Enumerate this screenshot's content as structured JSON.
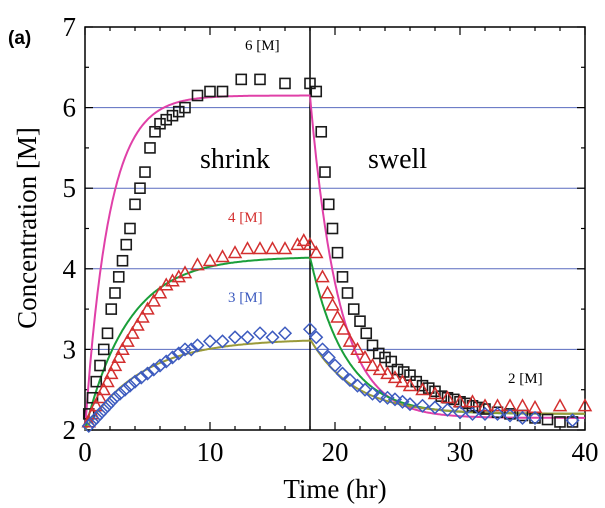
{
  "panel_label": "(a)",
  "chart_data": {
    "type": "scatter",
    "xlabel": "Time (hr)",
    "ylabel": "Concentration [M]",
    "xlim": [
      0,
      40
    ],
    "ylim": [
      2,
      7
    ],
    "x_ticks": [
      0,
      10,
      20,
      30,
      40
    ],
    "y_ticks": [
      2,
      3,
      4,
      5,
      6,
      7
    ],
    "grid": "horizontal lines at y = 3, 4, 5, 6",
    "divider_x": 18,
    "annotations": {
      "shrink": "shrink",
      "swell": "swell",
      "label_6M": "6 [M]",
      "label_4M": "4 [M]",
      "label_3M": "3 [M]",
      "label_2M": "2 [M]"
    },
    "series": [
      {
        "marker": "square",
        "color": "#1a1a1a",
        "fit_color": "#e040a8",
        "points": [
          [
            0.3,
            2.2
          ],
          [
            0.6,
            2.4
          ],
          [
            0.9,
            2.6
          ],
          [
            1.2,
            2.8
          ],
          [
            1.5,
            3.0
          ],
          [
            1.8,
            3.2
          ],
          [
            2.1,
            3.5
          ],
          [
            2.4,
            3.7
          ],
          [
            2.7,
            3.9
          ],
          [
            3.0,
            4.1
          ],
          [
            3.3,
            4.3
          ],
          [
            3.6,
            4.5
          ],
          [
            4.0,
            4.8
          ],
          [
            4.4,
            5.0
          ],
          [
            4.8,
            5.2
          ],
          [
            5.2,
            5.5
          ],
          [
            5.6,
            5.7
          ],
          [
            6.0,
            5.8
          ],
          [
            6.5,
            5.85
          ],
          [
            7.0,
            5.9
          ],
          [
            7.5,
            5.95
          ],
          [
            8.0,
            6.0
          ],
          [
            9.0,
            6.15
          ],
          [
            10.0,
            6.2
          ],
          [
            11.0,
            6.2
          ],
          [
            12.5,
            6.35
          ],
          [
            14.0,
            6.35
          ],
          [
            16.0,
            6.3
          ],
          [
            18.0,
            6.3
          ],
          [
            18.5,
            6.2
          ],
          [
            18.9,
            5.7
          ],
          [
            19.2,
            5.2
          ],
          [
            19.5,
            4.8
          ],
          [
            19.8,
            4.5
          ],
          [
            20.2,
            4.2
          ],
          [
            20.6,
            3.9
          ],
          [
            21.0,
            3.7
          ],
          [
            21.5,
            3.5
          ],
          [
            22.0,
            3.35
          ],
          [
            22.5,
            3.2
          ],
          [
            23.0,
            3.05
          ],
          [
            23.5,
            2.95
          ],
          [
            24.0,
            2.9
          ],
          [
            24.5,
            2.85
          ],
          [
            25.0,
            2.75
          ],
          [
            25.5,
            2.72
          ],
          [
            26.0,
            2.68
          ],
          [
            26.5,
            2.6
          ],
          [
            27.0,
            2.55
          ],
          [
            27.5,
            2.52
          ],
          [
            28.0,
            2.48
          ],
          [
            28.5,
            2.42
          ],
          [
            29.0,
            2.4
          ],
          [
            29.5,
            2.38
          ],
          [
            30.0,
            2.35
          ],
          [
            30.5,
            2.33
          ],
          [
            31.0,
            2.3
          ],
          [
            31.5,
            2.28
          ],
          [
            32.0,
            2.26
          ],
          [
            33.0,
            2.22
          ],
          [
            34.0,
            2.2
          ],
          [
            35.0,
            2.18
          ],
          [
            36.0,
            2.15
          ],
          [
            37.0,
            2.13
          ],
          [
            38.0,
            2.1
          ],
          [
            39.0,
            2.1
          ]
        ],
        "fit": {
          "start": 2.0,
          "plateau": 6.15,
          "rise_tau": 1.9,
          "end": 2.15,
          "decay_tau": 2.3
        }
      },
      {
        "marker": "triangle",
        "color": "#d32f2f",
        "fit_color": "#1a9f3a",
        "points": [
          [
            0.3,
            2.1
          ],
          [
            0.6,
            2.2
          ],
          [
            0.9,
            2.3
          ],
          [
            1.2,
            2.4
          ],
          [
            1.5,
            2.5
          ],
          [
            1.8,
            2.6
          ],
          [
            2.1,
            2.7
          ],
          [
            2.4,
            2.8
          ],
          [
            2.7,
            2.9
          ],
          [
            3.0,
            3.0
          ],
          [
            3.4,
            3.1
          ],
          [
            3.8,
            3.2
          ],
          [
            4.2,
            3.3
          ],
          [
            4.6,
            3.4
          ],
          [
            5.0,
            3.5
          ],
          [
            5.5,
            3.6
          ],
          [
            6.0,
            3.7
          ],
          [
            6.5,
            3.8
          ],
          [
            7.0,
            3.85
          ],
          [
            7.5,
            3.9
          ],
          [
            8.0,
            3.95
          ],
          [
            9.0,
            4.05
          ],
          [
            10.0,
            4.1
          ],
          [
            11.0,
            4.15
          ],
          [
            12.0,
            4.2
          ],
          [
            13.0,
            4.25
          ],
          [
            14.0,
            4.25
          ],
          [
            15.0,
            4.25
          ],
          [
            16.0,
            4.25
          ],
          [
            17.0,
            4.3
          ],
          [
            17.5,
            4.35
          ],
          [
            18.0,
            4.3
          ],
          [
            18.5,
            4.2
          ],
          [
            19.0,
            3.9
          ],
          [
            19.4,
            3.7
          ],
          [
            19.8,
            3.55
          ],
          [
            20.2,
            3.4
          ],
          [
            20.7,
            3.25
          ],
          [
            21.2,
            3.1
          ],
          [
            21.8,
            3.0
          ],
          [
            22.4,
            2.9
          ],
          [
            23.0,
            2.8
          ],
          [
            23.6,
            2.75
          ],
          [
            24.2,
            2.7
          ],
          [
            24.8,
            2.65
          ],
          [
            25.4,
            2.6
          ],
          [
            26.0,
            2.55
          ],
          [
            27.0,
            2.5
          ],
          [
            28.0,
            2.45
          ],
          [
            29.0,
            2.4
          ],
          [
            30.0,
            2.35
          ],
          [
            31.0,
            2.35
          ],
          [
            32.0,
            2.3
          ],
          [
            33.0,
            2.3
          ],
          [
            34.0,
            2.3
          ],
          [
            35.0,
            2.3
          ],
          [
            36.0,
            2.28
          ],
          [
            38.0,
            2.3
          ],
          [
            40.0,
            2.3
          ]
        ],
        "fit": {
          "start": 2.0,
          "plateau": 4.15,
          "rise_tau": 3.5,
          "end": 2.2,
          "decay_tau": 2.8
        }
      },
      {
        "marker": "diamond",
        "color": "#3d5bbf",
        "fit_color": "#9a9a3a",
        "points": [
          [
            0.3,
            2.05
          ],
          [
            0.6,
            2.1
          ],
          [
            0.9,
            2.15
          ],
          [
            1.2,
            2.2
          ],
          [
            1.5,
            2.25
          ],
          [
            1.8,
            2.3
          ],
          [
            2.1,
            2.35
          ],
          [
            2.4,
            2.4
          ],
          [
            2.8,
            2.45
          ],
          [
            3.2,
            2.5
          ],
          [
            3.6,
            2.55
          ],
          [
            4.0,
            2.6
          ],
          [
            4.5,
            2.65
          ],
          [
            5.0,
            2.7
          ],
          [
            5.5,
            2.75
          ],
          [
            6.0,
            2.8
          ],
          [
            6.5,
            2.85
          ],
          [
            7.0,
            2.9
          ],
          [
            7.5,
            2.95
          ],
          [
            8.0,
            3.0
          ],
          [
            8.5,
            3.0
          ],
          [
            9.0,
            3.05
          ],
          [
            10.0,
            3.1
          ],
          [
            11.0,
            3.1
          ],
          [
            12.0,
            3.15
          ],
          [
            13.0,
            3.15
          ],
          [
            14.0,
            3.2
          ],
          [
            15.0,
            3.15
          ],
          [
            16.0,
            3.2
          ],
          [
            18.0,
            3.25
          ],
          [
            18.5,
            3.15
          ],
          [
            19.0,
            3.0
          ],
          [
            19.5,
            2.9
          ],
          [
            20.0,
            2.8
          ],
          [
            20.6,
            2.7
          ],
          [
            21.2,
            2.62
          ],
          [
            21.8,
            2.55
          ],
          [
            22.4,
            2.5
          ],
          [
            23.0,
            2.45
          ],
          [
            23.6,
            2.42
          ],
          [
            24.2,
            2.4
          ],
          [
            24.8,
            2.38
          ],
          [
            25.4,
            2.35
          ],
          [
            26.0,
            2.32
          ],
          [
            27.0,
            2.3
          ],
          [
            28.0,
            2.28
          ],
          [
            29.0,
            2.25
          ],
          [
            30.0,
            2.22
          ],
          [
            31.0,
            2.2
          ],
          [
            32.0,
            2.2
          ],
          [
            33.0,
            2.2
          ],
          [
            34.0,
            2.18
          ],
          [
            35.0,
            2.15
          ],
          [
            36.0,
            2.15
          ],
          [
            39.0,
            2.12
          ]
        ],
        "fit": {
          "start": 2.0,
          "plateau": 3.13,
          "rise_tau": 4.5,
          "end": 2.2,
          "decay_tau": 3.5
        }
      }
    ]
  }
}
